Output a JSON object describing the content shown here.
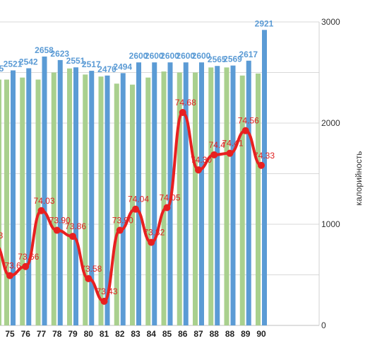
{
  "chart_data": {
    "type": "bar",
    "categories": [
      "75",
      "76",
      "77",
      "78",
      "79",
      "80",
      "81",
      "82",
      "83",
      "84",
      "85",
      "86",
      "87",
      "88",
      "88",
      "89",
      "90"
    ],
    "series": [
      {
        "values": [
          2430,
          2450,
          2430,
          2500,
          2540,
          2480,
          2460,
          2390,
          2380,
          2450,
          2510,
          2500,
          2500,
          2550,
          2550,
          2470,
          2490
        ],
        "color": "#a9d08e"
      },
      {
        "values": [
          2521,
          2542,
          2658,
          2623,
          2551,
          2517,
          2470,
          2494,
          2600,
          2600,
          2600,
          2600,
          2600,
          2565,
          2569,
          2617,
          2921
        ],
        "color": "#5b9bd5"
      },
      {
        "values": [
          73.6,
          73.66,
          74.03,
          73.9,
          73.86,
          73.58,
          73.43,
          73.9,
          74.04,
          73.82,
          74.05,
          74.68,
          74.3,
          74.4,
          74.41,
          74.56,
          74.33
        ],
        "color": "#e82020"
      }
    ],
    "bar_labels": [
      "2521",
      "2542",
      "2658",
      "2623",
      "2551",
      "2517",
      "2470",
      "2494",
      "2600",
      "2600",
      "2600",
      "2600",
      "2600",
      "2565",
      "2569",
      "2617",
      "2921"
    ],
    "line_labels": [
      "73.6",
      "73.66",
      "74.03",
      "73.90",
      "73.86",
      "73.58",
      "73.43",
      "73.90",
      "74.04",
      "73.82",
      "74.05",
      "74.68",
      "74.30",
      "74.4",
      "74.41",
      "74.56",
      "74.33"
    ],
    "edge_labels": {
      "blue": "5",
      "red": "3"
    },
    "y_right": {
      "label": "калорийность",
      "ticks": [
        "0",
        "1000",
        "2000",
        "3000"
      ],
      "ylim": [
        0,
        3000
      ]
    },
    "line_scale": {
      "ylim": [
        73.27,
        75.28
      ]
    },
    "grid": true,
    "colors": {
      "grid": "#d9d9d9",
      "line": "#e82020",
      "blue_bar": "#5b9bd5",
      "green_bar": "#a9d08e"
    }
  }
}
